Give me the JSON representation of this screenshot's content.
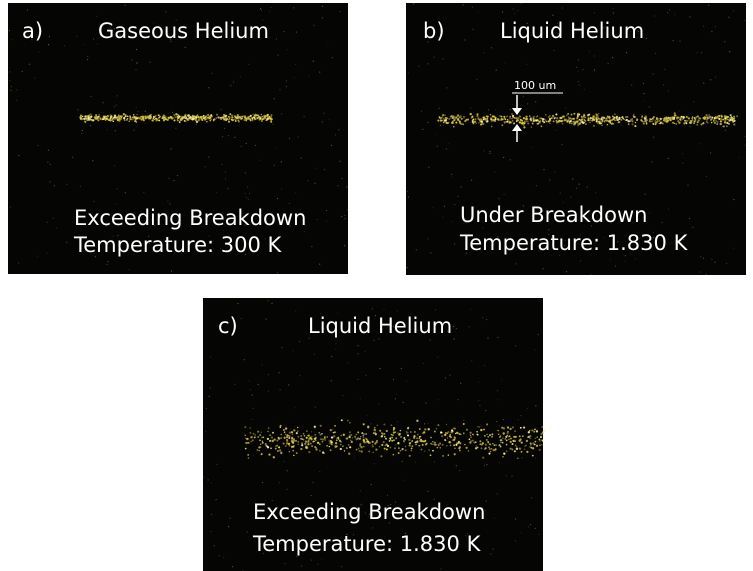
{
  "panels": [
    {
      "label": "a)",
      "title": "Gaseous Helium",
      "caption": [
        "Exceeding Breakdown",
        "Temperature:  300 K"
      ]
    },
    {
      "label": "b)",
      "title": "Liquid Helium",
      "annotation": "100 um",
      "caption": [
        "Under Breakdown",
        "Temperature:  1.830 K"
      ]
    },
    {
      "label": "c)",
      "title": "Liquid Helium",
      "caption": [
        "Exceeding Breakdown",
        "Temperature:  1.830 K"
      ]
    }
  ]
}
